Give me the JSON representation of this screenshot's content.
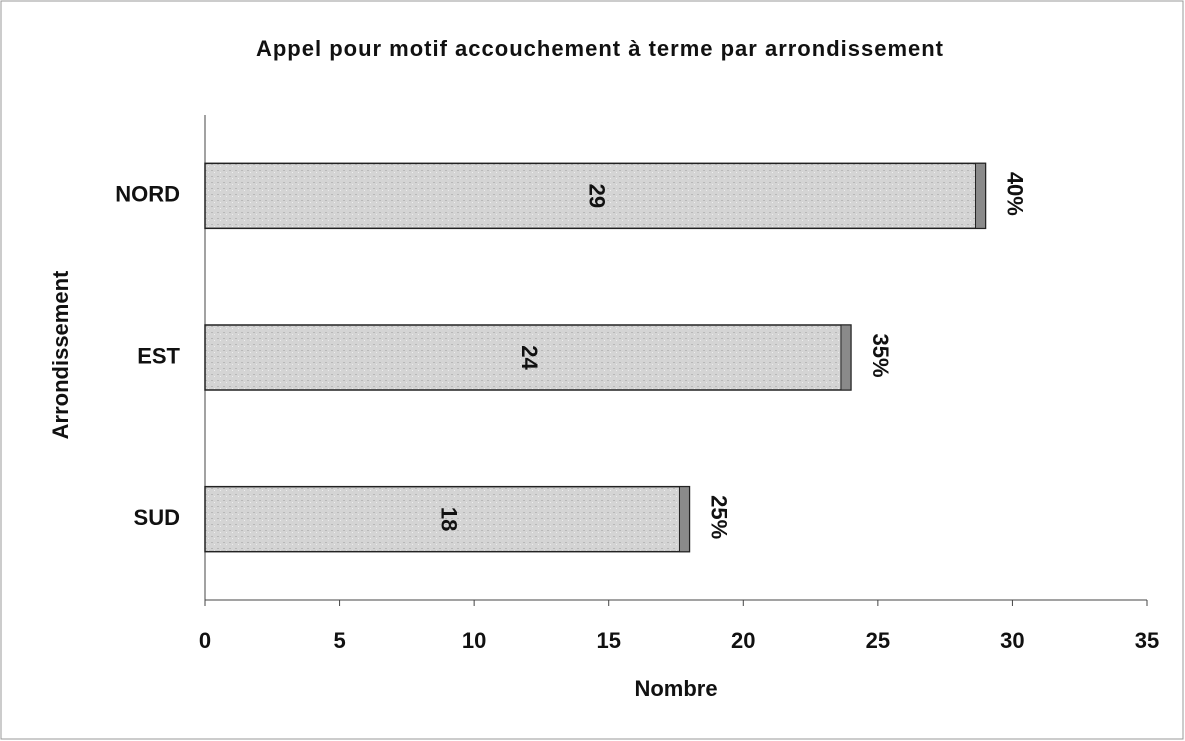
{
  "chart_data": {
    "type": "bar",
    "orientation": "horizontal",
    "title": "Appel pour motif accouchement à terme par arrondissement",
    "x_label": "Nombre",
    "y_label": "Arrondissement",
    "categories": [
      "NORD",
      "EST",
      "SUD"
    ],
    "values": [
      29,
      24,
      18
    ],
    "color": "#d4d4d4",
    "shares": {
      "values": [
        40,
        35,
        25
      ],
      "value_labels": [
        "40%",
        "35%",
        "25%"
      ]
    },
    "xlim": [
      0,
      35
    ],
    "xticks": [
      0,
      5,
      10,
      15,
      20,
      25,
      30,
      35
    ],
    "grid": false
  }
}
